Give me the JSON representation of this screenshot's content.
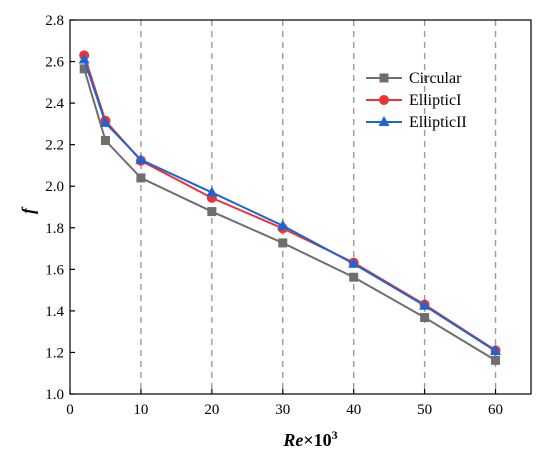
{
  "chart_data": {
    "type": "line",
    "title": "",
    "xlabel": {
      "main": "Re",
      "suffix": "×10",
      "sup": "3"
    },
    "ylabel": "f",
    "xlim": [
      0,
      65
    ],
    "ylim": [
      1.0,
      2.8
    ],
    "xticks": [
      0,
      10,
      20,
      30,
      40,
      50,
      60
    ],
    "yticks": [
      1.0,
      1.2,
      1.4,
      1.6,
      1.8,
      2.0,
      2.2,
      2.4,
      2.6,
      2.8
    ],
    "grid": {
      "vertical_dashed_at": [
        10,
        20,
        30,
        40,
        50,
        60
      ]
    },
    "legend_position": "top-right",
    "x": [
      2,
      5,
      10,
      20,
      30,
      40,
      50,
      60
    ],
    "series": [
      {
        "name": "Circular",
        "marker": "square",
        "color": "#6e6e6e",
        "values": [
          2.565,
          2.22,
          2.04,
          1.878,
          1.727,
          1.562,
          1.368,
          1.162
        ]
      },
      {
        "name": "EllipticI",
        "marker": "circle",
        "color": "#f03232",
        "values": [
          2.63,
          2.315,
          2.123,
          1.944,
          1.797,
          1.632,
          1.43,
          1.21
        ]
      },
      {
        "name": "EllipticII",
        "marker": "triangle",
        "color": "#1e64d2",
        "values": [
          2.61,
          2.305,
          2.127,
          1.97,
          1.81,
          1.627,
          1.425,
          1.207
        ]
      }
    ]
  }
}
